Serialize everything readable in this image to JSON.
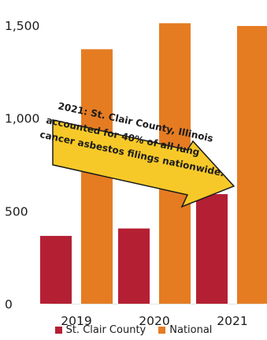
{
  "chart_data": {
    "type": "bar",
    "categories": [
      "2019",
      "2020",
      "2021"
    ],
    "series": [
      {
        "name": "St. Clair County",
        "values": [
          365,
          405,
          590
        ],
        "color": "#B51F34"
      },
      {
        "name": "National",
        "values": [
          1370,
          1510,
          1495
        ],
        "color": "#E57C22"
      }
    ],
    "ylim": [
      0,
      1550
    ],
    "yticks": [
      "0",
      "500",
      "1,000",
      "1,500"
    ],
    "grid": false,
    "legend_position": "bottom",
    "annotation": {
      "lines": [
        "2021: St. Clair County, Illinois",
        "accounted for 40% of all lung",
        "cancer asbestos filings nationwide."
      ],
      "color": "#F7C928"
    }
  }
}
